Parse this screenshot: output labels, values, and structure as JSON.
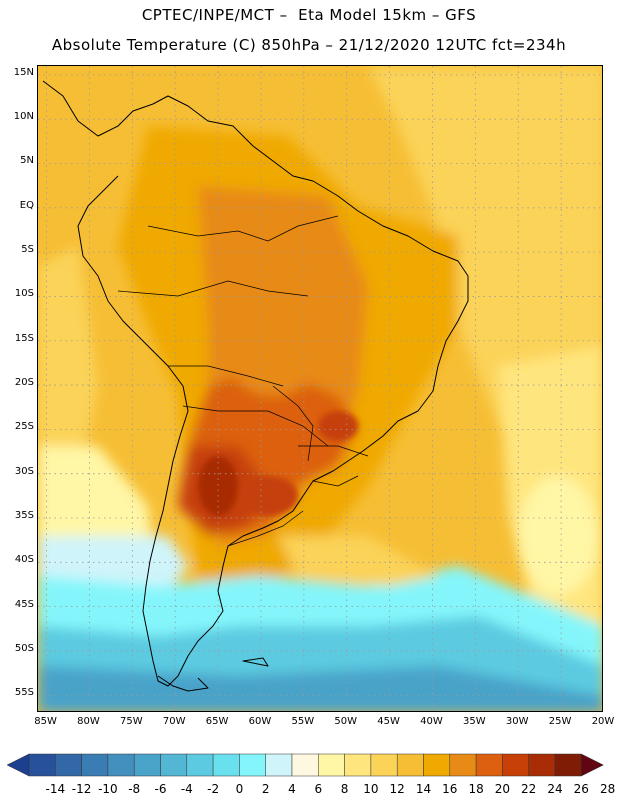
{
  "header": {
    "line1": "CPTEC/INPE/MCT –  Eta Model 15km – GFS",
    "line2": "Absolute Temperature (C) 850hPa – 21/12/2020 12UTC fct=234h"
  },
  "map": {
    "lat_labels": [
      "15N",
      "10N",
      "5N",
      "EQ",
      "5S",
      "10S",
      "15S",
      "20S",
      "25S",
      "30S",
      "35S",
      "40S",
      "45S",
      "50S",
      "55S"
    ],
    "lon_labels": [
      "85W",
      "80W",
      "75W",
      "70W",
      "65W",
      "60W",
      "55W",
      "50W",
      "45W",
      "40W",
      "35W",
      "30W",
      "25W",
      "20W"
    ],
    "lat_range": [
      16,
      -57
    ],
    "lon_range": [
      -86,
      -20
    ]
  },
  "colorbar": {
    "labels": [
      "-14",
      "-12",
      "-10",
      "-8",
      "-6",
      "-4",
      "-2",
      "0",
      "2",
      "4",
      "6",
      "8",
      "10",
      "12",
      "14",
      "16",
      "18",
      "20",
      "22",
      "24",
      "26",
      "28"
    ],
    "colors": [
      "#1c3f8f",
      "#28519c",
      "#3268a8",
      "#3a7db4",
      "#4390bf",
      "#4aa3c9",
      "#52b6d4",
      "#5ccbe1",
      "#69e0ee",
      "#84f6fb",
      "#cff4fa",
      "#fff8e0",
      "#fff6a6",
      "#ffe57d",
      "#fbd359",
      "#f6be34",
      "#f0a900",
      "#e88a16",
      "#dc6010",
      "#c64008",
      "#a82c05",
      "#7e1c06",
      "#620512"
    ]
  }
}
